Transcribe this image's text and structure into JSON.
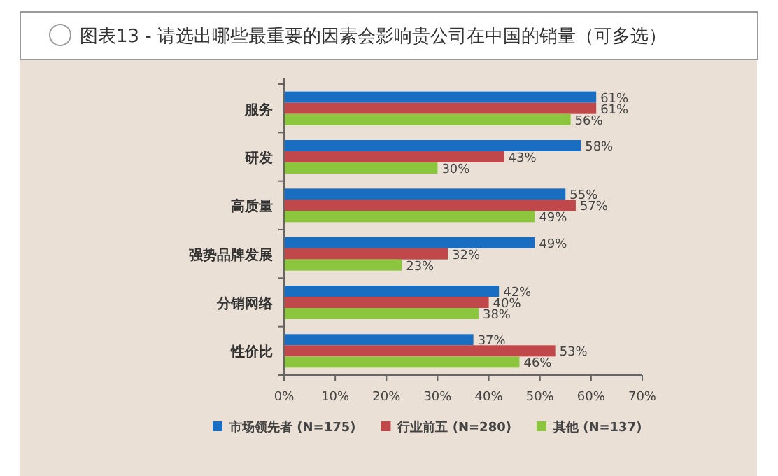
{
  "chart_data": {
    "type": "bar",
    "orientation": "horizontal",
    "title": "图表13 - 请选出哪些最重要的因素会影响贵公司在中国的销量（可多选）",
    "categories": [
      "服务",
      "研发",
      "高质量",
      "强势品牌发展",
      "分销网络",
      "性价比"
    ],
    "series": [
      {
        "name": "市场领先者 (N=175)",
        "color": "#1a6ec2",
        "values": [
          61,
          58,
          55,
          49,
          42,
          37
        ],
        "value_labels": [
          "61%",
          "58%",
          "55%",
          "49%",
          "42%",
          "37%"
        ]
      },
      {
        "name": "行业前五 (N=280)",
        "color": "#c0474a",
        "values": [
          61,
          43,
          57,
          32,
          40,
          53
        ],
        "value_labels": [
          "61%",
          "43%",
          "57%",
          "32%",
          "40%",
          "53%"
        ]
      },
      {
        "name": "其他 (N=137)",
        "color": "#8cc63f",
        "values": [
          56,
          30,
          49,
          23,
          38,
          46
        ],
        "value_labels": [
          "56%",
          "30%",
          "49%",
          "23%",
          "38%",
          "46%"
        ]
      }
    ],
    "xlim": [
      0,
      70
    ],
    "xticks": [
      {
        "value": 0,
        "label": "0%"
      },
      {
        "value": 10,
        "label": "10%"
      },
      {
        "value": 20,
        "label": "20%"
      },
      {
        "value": 30,
        "label": "30%"
      },
      {
        "value": 40,
        "label": "40%"
      },
      {
        "value": 50,
        "label": "50%"
      },
      {
        "value": 60,
        "label": "60%"
      },
      {
        "value": 70,
        "label": "70%"
      }
    ],
    "grid": false,
    "legend": "bottom"
  }
}
